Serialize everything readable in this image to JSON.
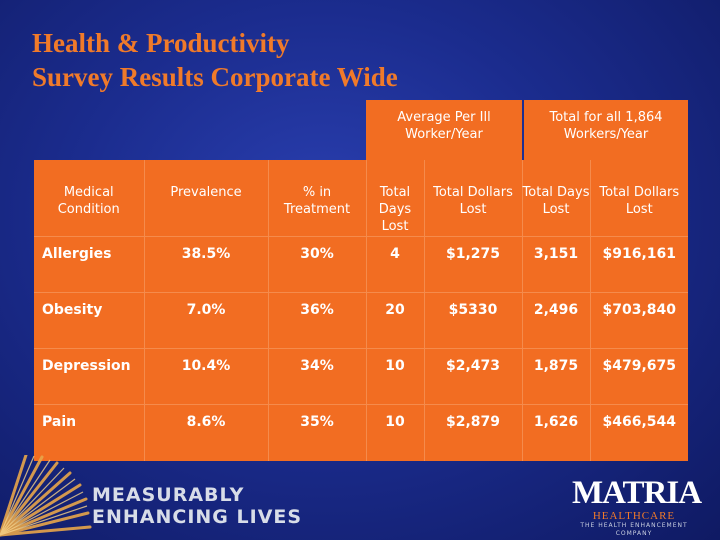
{
  "title": {
    "line1": "Health & Productivity",
    "line2": "Survey Results Corporate Wide"
  },
  "group_headers": {
    "average": "Average Per Ill Worker/Year",
    "total": "Total for all 1,864 Workers/Year"
  },
  "columns": [
    "Medical Condition",
    "Prevalence",
    "% in Treatment",
    "Total Days Lost",
    "Total Dollars Lost",
    "Total Days Lost",
    "Total Dollars Lost"
  ],
  "rows": [
    [
      "Allergies",
      "38.5%",
      "30%",
      "4",
      "$1,275",
      "3,151",
      "$916,161"
    ],
    [
      "Obesity",
      "7.0%",
      "36%",
      "20",
      "$5330",
      "2,496",
      "$703,840"
    ],
    [
      "Depression",
      "10.4%",
      "34%",
      "10",
      "$2,473",
      "1,875",
      "$479,675"
    ],
    [
      "Pain",
      "8.6%",
      "35%",
      "10",
      "$2,879",
      "1,626",
      "$466,544"
    ]
  ],
  "tagline": {
    "line1": "MEASURABLY",
    "line2": "ENHANCING LIVES"
  },
  "logo": {
    "word": "MATRIA",
    "sub": "HEALTHCARE",
    "tag": "THE HEALTH ENHANCEMENT COMPANY"
  },
  "colors": {
    "accent": "#f26d22",
    "title": "#f07a2a",
    "background": "#1b2c8e"
  }
}
